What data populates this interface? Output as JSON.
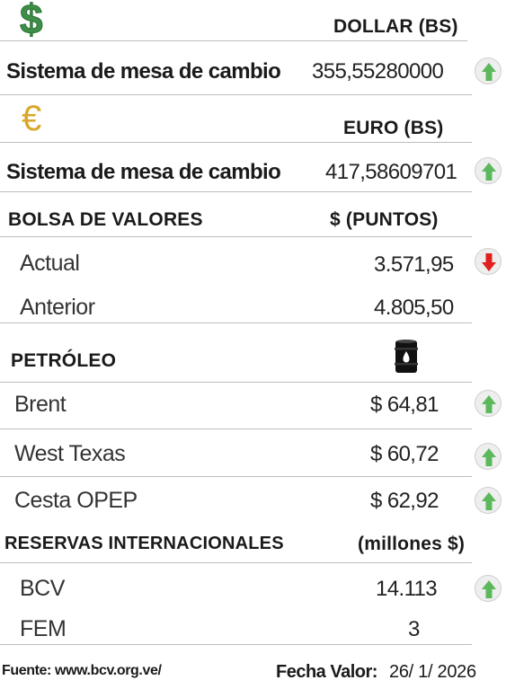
{
  "dollar": {
    "icon": "dollar-sign-icon",
    "symbol": "$",
    "header": "DOLLAR (BS)",
    "label": "Sistema de mesa de cambio",
    "value": "355,55280000",
    "trend": "up"
  },
  "euro": {
    "icon": "euro-sign-icon",
    "symbol": "€",
    "header": "EURO (BS)",
    "label": "Sistema de mesa de cambio",
    "value": "417,58609701",
    "trend": "up"
  },
  "bolsa": {
    "title": "BOLSA DE VALORES",
    "unit": "$ (PUNTOS)",
    "rows": [
      {
        "label": "Actual",
        "value": "3.571,95",
        "trend": "down"
      },
      {
        "label": "Anterior",
        "value": "4.805,50"
      }
    ]
  },
  "petroleo": {
    "title": "PETRÓLEO",
    "icon": "oil-barrel-icon",
    "rows": [
      {
        "label": "Brent",
        "value": "$ 64,81",
        "trend": "up"
      },
      {
        "label": "West Texas",
        "value": "$ 60,72",
        "trend": "up"
      },
      {
        "label": "Cesta OPEP",
        "value": "$ 62,92",
        "trend": "up"
      }
    ]
  },
  "reservas": {
    "title": "RESERVAS INTERNACIONALES",
    "unit": "(millones $)",
    "rows": [
      {
        "label": "BCV",
        "value": "14.113",
        "trend": "up"
      },
      {
        "label": "FEM",
        "value": "3"
      }
    ]
  },
  "footer": {
    "source": "Fuente: www.bcv.org.ve/",
    "date_label": "Fecha Valor:",
    "date_value": "26/ 1/ 2026"
  },
  "colors": {
    "up": "#5cb85c",
    "down": "#e02020",
    "dollar": "#3d8f47",
    "euro": "#d9a72a"
  }
}
